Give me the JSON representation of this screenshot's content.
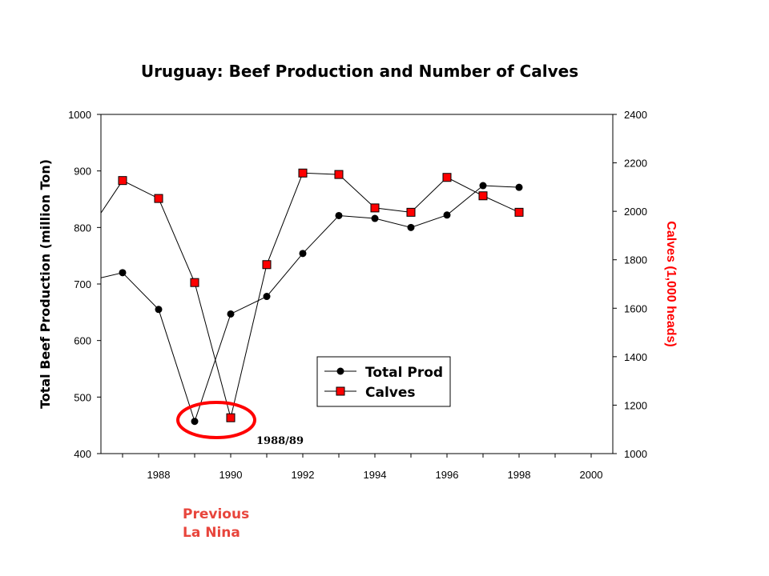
{
  "chart_data": {
    "type": "line",
    "title": "Uruguay: Beef Production and Number of Calves",
    "xlabel": "",
    "ylabel_left": "Total Beef Production (million Ton)",
    "ylabel_right": "Calves (1,000 heads)",
    "xlim": [
      1986.4,
      2000.6
    ],
    "ylim_left": [
      400,
      1000
    ],
    "ylim_right": [
      1000,
      2400
    ],
    "x_ticks": [
      "1988",
      "1990",
      "1992",
      "1994",
      "1996",
      "1998",
      "2000"
    ],
    "y_left_ticks": [
      "400",
      "500",
      "600",
      "700",
      "800",
      "900",
      "1000"
    ],
    "y_right_ticks": [
      "1000",
      "1200",
      "1400",
      "1600",
      "1800",
      "2000",
      "2200",
      "2400"
    ],
    "legend_position": "center-bottom",
    "series": [
      {
        "name": "Total Prod",
        "axis": "left",
        "marker": "circle",
        "color": "#000000",
        "x": [
          1986.4,
          1987,
          1988,
          1989,
          1990,
          1991,
          1992,
          1993,
          1994,
          1995,
          1996,
          1997,
          1998
        ],
        "values": [
          711,
          720,
          655,
          457,
          647,
          678,
          754,
          821,
          816,
          800,
          822,
          874,
          871
        ],
        "leading_segment_unmarked": true
      },
      {
        "name": "Calves",
        "axis": "right",
        "marker": "square",
        "color": "#000000",
        "marker_color": "#ff0000",
        "x": [
          1986.4,
          1987,
          1988,
          1989,
          1990,
          1991,
          1992,
          1993,
          1994,
          1995,
          1996,
          1997,
          1998
        ],
        "values": [
          1993,
          2127,
          2053,
          1706,
          1148,
          1780,
          2158,
          2152,
          2014,
          1996,
          2140,
          2064,
          1996
        ],
        "leading_segment_unmarked": true
      }
    ],
    "annotations": {
      "period_label": "1988/89",
      "note_line1": "Previous",
      "note_line2": "La Nina"
    }
  },
  "colors": {
    "accent_red": "#ff0000",
    "note_red": "#e8453c",
    "axis": "#000000"
  }
}
